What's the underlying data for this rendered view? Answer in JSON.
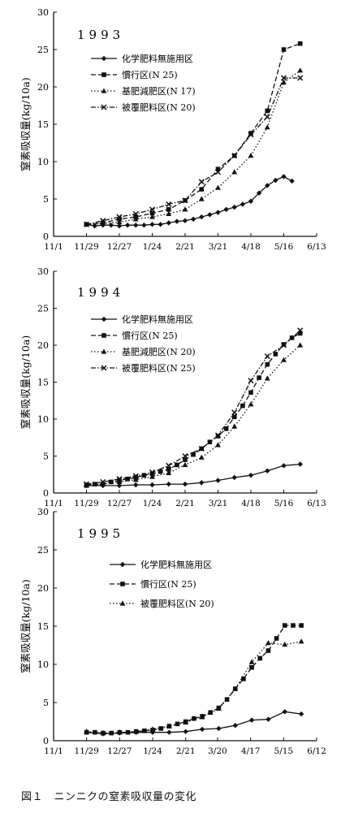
{
  "caption": "図１　ニンニクの窒素吸収量の変化",
  "chart_data": [
    {
      "type": "line",
      "title": "1993",
      "ylabel": "窒素吸収量(kg/10a)",
      "ylim": [
        0,
        30
      ],
      "yticks": [
        "0",
        "5",
        "10",
        "15",
        "20",
        "25",
        "30"
      ],
      "xlim": [
        0,
        224
      ],
      "xticks": [
        {
          "label": "11/1",
          "x": 0
        },
        {
          "label": "11/29",
          "x": 28
        },
        {
          "label": "12/27",
          "x": 56
        },
        {
          "label": "1/24",
          "x": 84
        },
        {
          "label": "2/21",
          "x": 112
        },
        {
          "label": "3/21",
          "x": 140
        },
        {
          "label": "4/18",
          "x": 168
        },
        {
          "label": "5/16",
          "x": 196
        },
        {
          "label": "6/13",
          "x": 224
        }
      ],
      "legend_position": "top-left",
      "series": [
        {
          "name": "化学肥料無施用区",
          "marker": "diamond",
          "dash": "solid",
          "x": [
            28,
            35,
            42,
            49,
            56,
            63,
            70,
            77,
            84,
            91,
            98,
            105,
            112,
            119,
            126,
            133,
            140,
            147,
            154,
            161,
            168,
            175,
            182,
            189,
            196,
            203
          ],
          "y": [
            1.6,
            1.4,
            1.5,
            1.5,
            1.4,
            1.5,
            1.5,
            1.5,
            1.6,
            1.6,
            1.8,
            2.0,
            2.1,
            2.3,
            2.6,
            2.9,
            3.2,
            3.6,
            3.9,
            4.3,
            4.7,
            5.8,
            6.8,
            7.5,
            8.0,
            7.4
          ]
        },
        {
          "name": "慣行区(N 25)",
          "marker": "square",
          "dash": "dashed",
          "x": [
            28,
            42,
            56,
            70,
            84,
            98,
            112,
            126,
            140,
            154,
            168,
            182,
            196,
            210
          ],
          "y": [
            1.6,
            1.8,
            2.3,
            2.6,
            3.1,
            3.6,
            4.8,
            6.3,
            9.0,
            10.8,
            13.8,
            16.8,
            25.0,
            25.8
          ]
        },
        {
          "name": "基肥減肥区(N 17)",
          "marker": "triangle",
          "dash": "dotted",
          "x": [
            28,
            42,
            56,
            70,
            84,
            98,
            112,
            126,
            140,
            154,
            168,
            182,
            196,
            210
          ],
          "y": [
            1.6,
            1.7,
            1.9,
            2.3,
            2.6,
            3.0,
            3.6,
            5.0,
            6.5,
            8.6,
            10.8,
            14.6,
            20.6,
            22.2
          ]
        },
        {
          "name": "被覆肥料区(N 20)",
          "marker": "cross",
          "dash": "dashdot",
          "x": [
            28,
            42,
            56,
            70,
            84,
            98,
            112,
            126,
            140,
            154,
            168,
            182,
            196,
            210
          ],
          "y": [
            1.6,
            2.1,
            2.6,
            3.0,
            3.6,
            4.3,
            4.8,
            7.3,
            8.6,
            10.8,
            13.6,
            16.0,
            21.2,
            21.2
          ]
        }
      ]
    },
    {
      "type": "line",
      "title": "1994",
      "ylabel": "窒素吸収量(kg/10a)",
      "ylim": [
        0,
        30
      ],
      "yticks": [
        "0",
        "5",
        "10",
        "15",
        "20",
        "25",
        "30"
      ],
      "xlim": [
        0,
        224
      ],
      "xticks": [
        {
          "label": "11/1",
          "x": 0
        },
        {
          "label": "11/29",
          "x": 28
        },
        {
          "label": "12/27",
          "x": 56
        },
        {
          "label": "1/24",
          "x": 84
        },
        {
          "label": "2/21",
          "x": 112
        },
        {
          "label": "3/21",
          "x": 140
        },
        {
          "label": "4/18",
          "x": 168
        },
        {
          "label": "5/16",
          "x": 196
        },
        {
          "label": "6/13",
          "x": 224
        }
      ],
      "legend_position": "top-left",
      "series": [
        {
          "name": "化学肥料無施用区",
          "marker": "diamond",
          "dash": "solid",
          "x": [
            28,
            42,
            56,
            70,
            84,
            98,
            112,
            126,
            140,
            154,
            168,
            182,
            196,
            210
          ],
          "y": [
            1.0,
            1.0,
            1.0,
            1.1,
            1.1,
            1.2,
            1.2,
            1.4,
            1.7,
            2.1,
            2.4,
            3.0,
            3.7,
            3.9
          ]
        },
        {
          "name": "慣行区(N 25)",
          "marker": "square",
          "dash": "dashed",
          "x": [
            28,
            35,
            42,
            49,
            56,
            63,
            70,
            77,
            84,
            91,
            98,
            105,
            112,
            119,
            126,
            133,
            140,
            147,
            154,
            161,
            168,
            175,
            182,
            189,
            196,
            203,
            210
          ],
          "y": [
            1.1,
            1.2,
            1.2,
            1.5,
            1.7,
            1.9,
            2.1,
            2.4,
            2.6,
            2.9,
            3.2,
            3.8,
            4.5,
            5.2,
            6.0,
            6.9,
            7.7,
            8.7,
            10.3,
            11.8,
            13.6,
            15.6,
            17.4,
            18.8,
            20.1,
            21.0,
            21.6
          ]
        },
        {
          "name": "基肥減肥区(N 20)",
          "marker": "triangle",
          "dash": "dotted",
          "x": [
            28,
            42,
            56,
            70,
            84,
            98,
            112,
            126,
            140,
            154,
            168,
            182,
            196,
            210
          ],
          "y": [
            1.0,
            1.2,
            1.5,
            1.8,
            2.2,
            2.7,
            3.8,
            4.8,
            6.5,
            9.0,
            12.0,
            15.5,
            18.0,
            20.0
          ]
        },
        {
          "name": "被覆肥料区(N 25)",
          "marker": "cross",
          "dash": "dashdot",
          "x": [
            28,
            42,
            56,
            70,
            84,
            98,
            112,
            126,
            140,
            154,
            168,
            182,
            196,
            210
          ],
          "y": [
            1.2,
            1.5,
            1.9,
            2.3,
            2.8,
            3.7,
            5.0,
            6.0,
            7.8,
            10.9,
            15.2,
            18.5,
            20.0,
            22.0
          ]
        }
      ]
    },
    {
      "type": "line",
      "title": "1995",
      "ylabel": "窒素吸収量(kg/10a)",
      "ylim": [
        0,
        30
      ],
      "yticks": [
        "0",
        "5",
        "10",
        "15",
        "20",
        "25",
        "30"
      ],
      "xlim": [
        0,
        223
      ],
      "xticks": [
        {
          "label": "11/1",
          "x": 0
        },
        {
          "label": "11/29",
          "x": 28
        },
        {
          "label": "12/27",
          "x": 56
        },
        {
          "label": "1/24",
          "x": 84
        },
        {
          "label": "2/21",
          "x": 112
        },
        {
          "label": "3/20",
          "x": 139
        },
        {
          "label": "4/17",
          "x": 167
        },
        {
          "label": "5/15",
          "x": 195
        },
        {
          "label": "6/12",
          "x": 223
        }
      ],
      "legend_position": "top-center",
      "series": [
        {
          "name": "化学肥料無施用区",
          "marker": "diamond",
          "dash": "solid",
          "x": [
            28,
            42,
            56,
            70,
            84,
            98,
            112,
            126,
            140,
            154,
            168,
            182,
            196,
            210
          ],
          "y": [
            1.1,
            0.9,
            1.0,
            1.1,
            1.1,
            1.1,
            1.2,
            1.5,
            1.6,
            2.0,
            2.7,
            2.8,
            3.8,
            3.5
          ]
        },
        {
          "name": "慣行区(N 25)",
          "marker": "square",
          "dash": "dashed",
          "x": [
            28,
            35,
            42,
            49,
            56,
            63,
            70,
            77,
            84,
            91,
            98,
            105,
            112,
            119,
            126,
            133,
            140,
            147,
            154,
            161,
            168,
            175,
            182,
            189,
            196,
            203,
            210
          ],
          "y": [
            1.1,
            1.1,
            1.0,
            1.0,
            1.1,
            1.1,
            1.2,
            1.3,
            1.4,
            1.6,
            1.9,
            2.2,
            2.5,
            2.9,
            3.2,
            3.7,
            4.3,
            5.4,
            6.8,
            8.1,
            9.6,
            10.8,
            11.8,
            13.4,
            15.1,
            15.1,
            15.1
          ]
        },
        {
          "name": "被覆肥料区(N 20)",
          "marker": "triangle",
          "dash": "dotted",
          "x": [
            28,
            42,
            56,
            70,
            84,
            98,
            112,
            126,
            140,
            154,
            168,
            182,
            196,
            210
          ],
          "y": [
            1.2,
            1.0,
            1.1,
            1.2,
            1.5,
            1.9,
            2.4,
            3.1,
            4.2,
            6.8,
            10.3,
            12.8,
            12.6,
            13.0
          ]
        }
      ]
    }
  ]
}
